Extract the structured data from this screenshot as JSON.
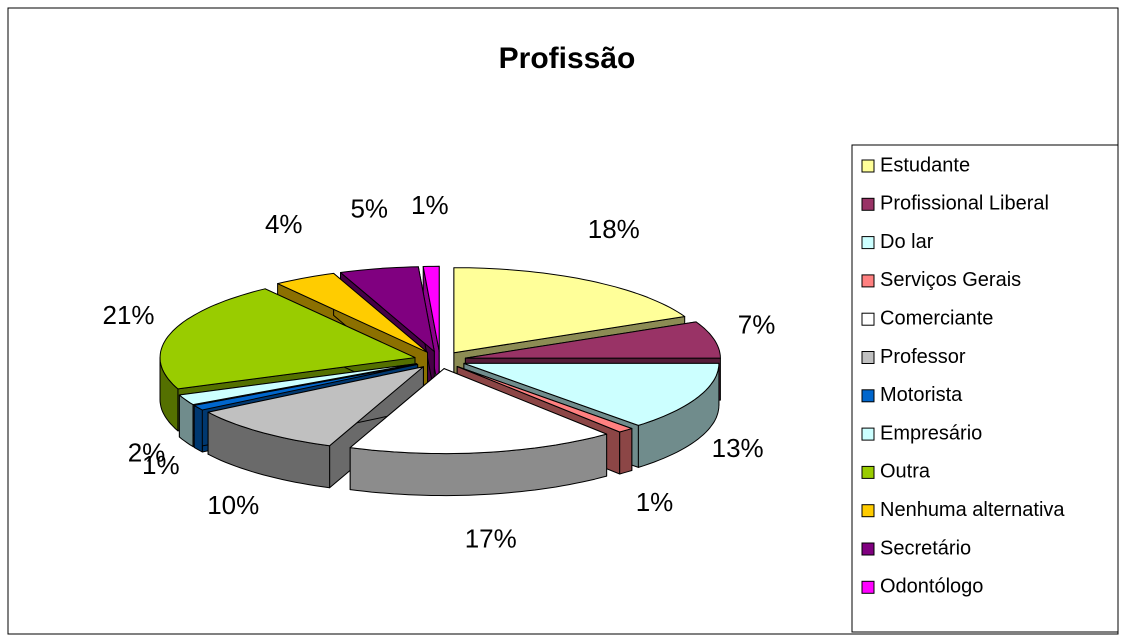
{
  "chart_data": {
    "type": "pie3d",
    "title": "Profissão",
    "categories": [
      "Estudante",
      "Profissional Liberal",
      "Do lar",
      "Serviços Gerais",
      "Comerciante",
      "Professor",
      "Motorista",
      "Empresário",
      "Outra",
      "Nenhuma alternativa",
      "Secretário",
      "Odontólogo"
    ],
    "values": [
      18,
      7,
      13,
      1,
      17,
      10,
      1,
      2,
      21,
      4,
      5,
      1
    ],
    "value_labels": [
      "18%",
      "7%",
      "13%",
      "1%",
      "17%",
      "10%",
      "1%",
      "2%",
      "21%",
      "4%",
      "5%",
      "1%"
    ],
    "colors": [
      "#FFFF99",
      "#993366",
      "#CCFFFF",
      "#FF8080",
      "#FFFFFF",
      "#C0C0C0",
      "#0066CC",
      "#CCFFFF",
      "#99CC00",
      "#FFCC00",
      "#800080",
      "#FF00FF"
    ],
    "legend": "right"
  }
}
